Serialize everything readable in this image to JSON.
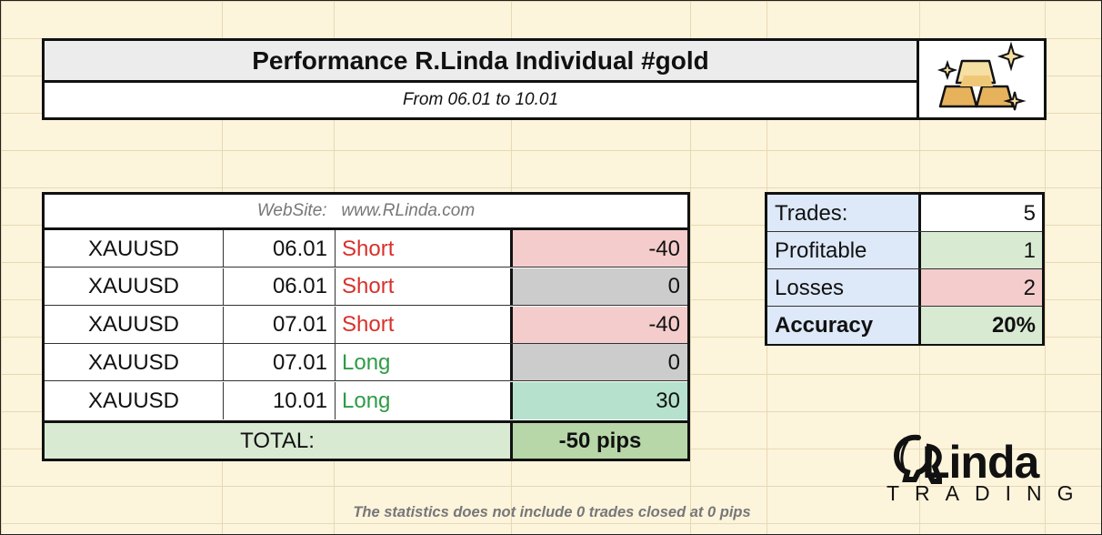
{
  "header": {
    "title": "Performance R.Linda Individual #gold",
    "subtitle": "From 06.01 to 10.01",
    "logo_icon": "gold-bars-icon"
  },
  "trades_table": {
    "website": "WebSite:   www.RLinda.com",
    "rows": [
      {
        "symbol": "XAUUSD",
        "date": "06.01",
        "direction": "Short",
        "pips": "-40",
        "bg": "#f4cccc"
      },
      {
        "symbol": "XAUUSD",
        "date": "06.01",
        "direction": "Short",
        "pips": "0",
        "bg": "#cccccc"
      },
      {
        "symbol": "XAUUSD",
        "date": "07.01",
        "direction": "Short",
        "pips": "-40",
        "bg": "#f4cccc"
      },
      {
        "symbol": "XAUUSD",
        "date": "07.01",
        "direction": "Long",
        "pips": "0",
        "bg": "#cccccc"
      },
      {
        "symbol": "XAUUSD",
        "date": "10.01",
        "direction": "Long",
        "pips": "30",
        "bg": "#b6e1cd"
      }
    ],
    "total_label": "TOTAL:",
    "total_value": "-50 pips"
  },
  "stats": [
    {
      "label": "Trades:",
      "value": "5",
      "bg": "#ffffff",
      "bold": false
    },
    {
      "label": "Profitable",
      "value": "1",
      "bg": "#d9ead3",
      "bold": false
    },
    {
      "label": "Losses",
      "value": "2",
      "bg": "#f4cccc",
      "bold": false
    },
    {
      "label": "Accuracy",
      "value": "20%",
      "bg": "#d9ead3",
      "bold": true
    }
  ],
  "footnote": "The statistics does not include 0 trades closed at 0 pips",
  "brand": {
    "name": "Linda",
    "sub": "TRADING",
    "logo_icon": "rlinda-profile-logo-icon"
  },
  "colors": {
    "short": "#d9302b",
    "long": "#2e9b47",
    "background": "#fdf4dc"
  }
}
